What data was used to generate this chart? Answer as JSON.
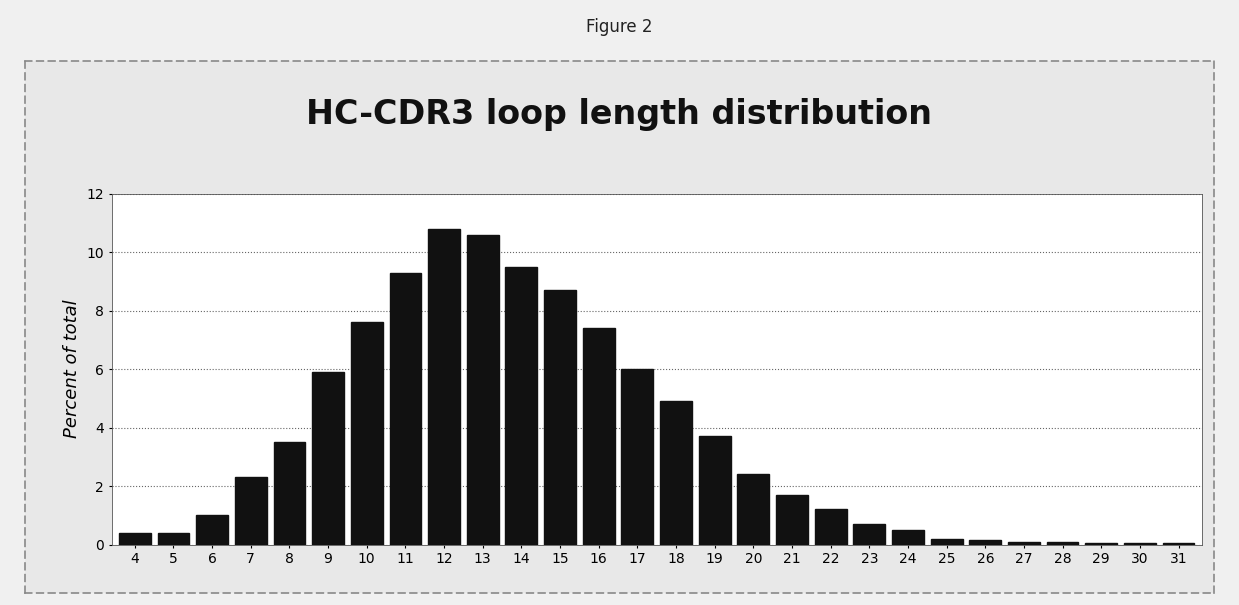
{
  "title": "HC-CDR3 loop length distribution",
  "figure_label": "Figure 2",
  "ylabel": "Percent of total",
  "categories": [
    4,
    5,
    6,
    7,
    8,
    9,
    10,
    11,
    12,
    13,
    14,
    15,
    16,
    17,
    18,
    19,
    20,
    21,
    22,
    23,
    24,
    25,
    26,
    27,
    28,
    29,
    30,
    31
  ],
  "values": [
    0.4,
    0.4,
    1.0,
    2.3,
    3.5,
    5.9,
    7.6,
    9.3,
    10.8,
    10.6,
    9.5,
    8.7,
    7.4,
    6.0,
    4.9,
    3.7,
    2.4,
    1.7,
    1.2,
    0.7,
    0.5,
    0.2,
    0.15,
    0.1,
    0.1,
    0.05,
    0.05,
    0.05
  ],
  "bar_color": "#111111",
  "ylim": [
    0,
    12
  ],
  "yticks": [
    0,
    2,
    4,
    6,
    8,
    10,
    12
  ],
  "background_color": "#f0f0f0",
  "plot_bg_color": "#ffffff",
  "grid_color": "#666666",
  "title_fontsize": 24,
  "label_fontsize": 13,
  "tick_fontsize": 10,
  "fig_label_fontsize": 12
}
